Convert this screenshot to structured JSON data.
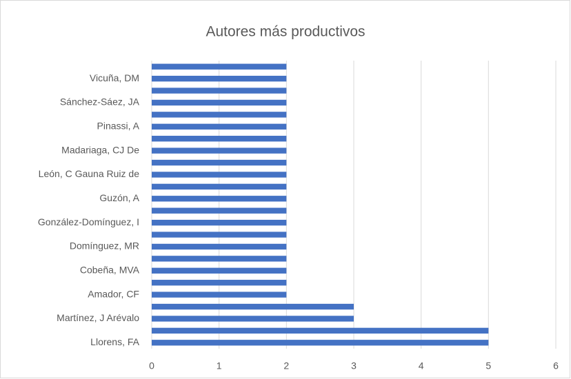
{
  "chart_data": {
    "type": "hbar",
    "title": "Autores más productivos",
    "categories": [
      "Llorens, FA",
      null,
      "Martínez, J Arévalo",
      null,
      "Amador, CF",
      null,
      "Cobeña, MVA",
      null,
      "Domínguez, MR",
      null,
      "González-Domínguez, I",
      null,
      "Guzón, A",
      null,
      "León, C Gauna Ruiz de",
      null,
      "Madariaga, CJ De",
      null,
      "Pinassi, A",
      null,
      "Sánchez-Sáez, JA",
      null,
      "Vicuña, DM",
      null
    ],
    "values": [
      5,
      5,
      3,
      3,
      2,
      2,
      2,
      2,
      2,
      2,
      2,
      2,
      2,
      2,
      2,
      2,
      2,
      2,
      2,
      2,
      2,
      2,
      2,
      2
    ],
    "color": "#4472c4",
    "xlim": [
      0,
      6
    ],
    "xticks": [
      0,
      1,
      2,
      3,
      4,
      5,
      6
    ],
    "grid": true
  }
}
